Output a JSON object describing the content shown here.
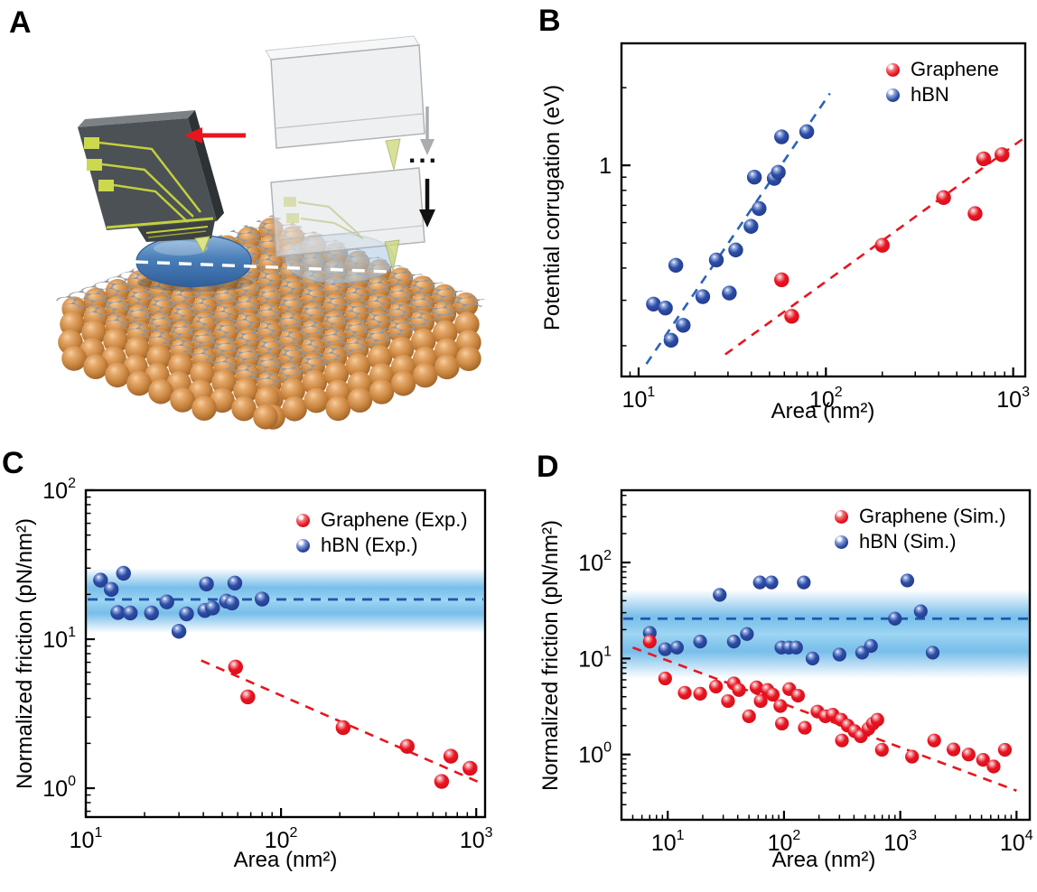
{
  "figure": {
    "panels": [
      {
        "label": "A"
      },
      {
        "label": "B"
      },
      {
        "label": "C"
      },
      {
        "label": "D"
      }
    ]
  },
  "panel_a": {
    "ellipsis": "...",
    "elements": [
      "afm-cantilever-chip",
      "ghost-cantilever-upper",
      "ghost-cantilever-lower",
      "water-droplet",
      "ghost-water-droplet",
      "graphene-sheet",
      "copper-substrate",
      "red-arrow-left",
      "gray-arrow-down",
      "black-arrow-down",
      "sliding-path-dashed-line"
    ]
  },
  "colors": {
    "graphene_red": "#e8141f",
    "hbn_blue": "#2b4aa0",
    "band_blue": "#57aee5",
    "band_core_blue": "#9fd6f3",
    "band_line_blue": "#1f57ad",
    "trend_red": "#e8151f",
    "trend_blue": "#2c62b8",
    "axis_black": "#000000",
    "copper_orange": "#c9853f",
    "graphene_gray": "#959ba1"
  },
  "chart_data": [
    {
      "panel": "B",
      "type": "scatter",
      "xlabel": "Area (nm²)",
      "ylabel": "Potential corrugation (eV)",
      "xscale": "log",
      "yscale": "log",
      "xlim": [
        8.1,
        1160
      ],
      "ylim": [
        0.152,
        2.97
      ],
      "grid": false,
      "legend_position": "top-right",
      "xticks": [
        {
          "value": 10,
          "label": "10",
          "exp": "1"
        },
        {
          "value": 100,
          "label": "10",
          "exp": "2"
        },
        {
          "value": 1000,
          "label": "10",
          "exp": "3"
        }
      ],
      "yticks": [
        {
          "value": 1,
          "label": "1",
          "exp": ""
        }
      ],
      "legend": [
        {
          "label": "Graphene",
          "color": "graphene"
        },
        {
          "label": "hBN",
          "color": "hbn"
        }
      ],
      "series": [
        {
          "name": "hBN",
          "color": "hbn",
          "points": [
            [
              12,
              0.29
            ],
            [
              13.9,
              0.28
            ],
            [
              14.9,
              0.21
            ],
            [
              15.8,
              0.41
            ],
            [
              17.3,
              0.24
            ],
            [
              22,
              0.31
            ],
            [
              26,
              0.43
            ],
            [
              30.5,
              0.32
            ],
            [
              33,
              0.47
            ],
            [
              39.8,
              0.58
            ],
            [
              41.5,
              0.9
            ],
            [
              44,
              0.68
            ],
            [
              53,
              0.89
            ],
            [
              55.7,
              0.94
            ],
            [
              58,
              1.29
            ],
            [
              79,
              1.35
            ]
          ]
        },
        {
          "name": "Graphene",
          "color": "graphene",
          "points": [
            [
              58,
              0.36
            ],
            [
              65.7,
              0.26
            ],
            [
              200,
              0.49
            ],
            [
              425,
              0.75
            ],
            [
              626,
              0.65
            ],
            [
              695,
              1.06
            ],
            [
              871,
              1.1
            ]
          ]
        }
      ],
      "trends": [
        {
          "color": "hbn",
          "from": [
            11,
            0.17
          ],
          "to": [
            105,
            1.9
          ]
        },
        {
          "color": "graphene",
          "from": [
            29,
            0.185
          ],
          "to": [
            1150,
            1.28
          ]
        }
      ]
    },
    {
      "panel": "C",
      "type": "scatter",
      "xlabel": "Area (nm²)",
      "ylabel": "Normalized friction (pN/nm²)",
      "xscale": "log",
      "yscale": "log",
      "xlim": [
        10,
        1110
      ],
      "ylim": [
        0.64,
        100
      ],
      "grid": false,
      "legend_position": "top-right",
      "xticks": [
        {
          "value": 10,
          "label": "10",
          "exp": "1"
        },
        {
          "value": 100,
          "label": "10",
          "exp": "2"
        },
        {
          "value": 1000,
          "label": "10",
          "exp": "3"
        }
      ],
      "yticks": [
        {
          "value": 1,
          "label": "10",
          "exp": "0"
        },
        {
          "value": 10,
          "label": "10",
          "exp": "1"
        },
        {
          "value": 100,
          "label": "10",
          "exp": "2"
        }
      ],
      "legend": [
        {
          "label": "Graphene (Exp.)",
          "color": "graphene"
        },
        {
          "label": "hBN (Exp.)",
          "color": "hbn"
        }
      ],
      "band": {
        "from": 11,
        "to": 30,
        "center": 18.5
      },
      "band_line": 18.5,
      "series": [
        {
          "name": "hBN (Exp.)",
          "color": "hbn",
          "points": [
            [
              11.9,
              24.9
            ],
            [
              13.5,
              21.6
            ],
            [
              14.6,
              15.1
            ],
            [
              15.6,
              27.7
            ],
            [
              16.9,
              15.0
            ],
            [
              21.7,
              15.0
            ],
            [
              26,
              17.8
            ],
            [
              30,
              11.3
            ],
            [
              32.8,
              14.8
            ],
            [
              40.7,
              15.6
            ],
            [
              41.5,
              23.5
            ],
            [
              44.6,
              16.2
            ],
            [
              52.5,
              18.0
            ],
            [
              56,
              17.5
            ],
            [
              58,
              23.8
            ],
            [
              80,
              18.6
            ]
          ]
        },
        {
          "name": "Graphene (Exp.)",
          "color": "graphene",
          "points": [
            [
              58.5,
              6.5
            ],
            [
              67.6,
              4.1
            ],
            [
              208,
              2.55
            ],
            [
              443,
              1.91
            ],
            [
              665,
              1.11
            ],
            [
              741,
              1.64
            ],
            [
              929,
              1.36
            ]
          ]
        }
      ],
      "trends": [
        {
          "color": "graphene",
          "from": [
            39,
            7.2
          ],
          "to": [
            1060,
            1.08
          ]
        }
      ]
    },
    {
      "panel": "D",
      "type": "scatter",
      "xlabel": "Area (nm²)",
      "ylabel": "Normalized friction (pN/nm²)",
      "xscale": "log",
      "yscale": "log",
      "xlim": [
        4.0,
        13000
      ],
      "ylim": [
        0.209,
        566
      ],
      "grid": false,
      "legend_position": "top-right",
      "xticks": [
        {
          "value": 10,
          "label": "10",
          "exp": "1"
        },
        {
          "value": 100,
          "label": "10",
          "exp": "2"
        },
        {
          "value": 1000,
          "label": "10",
          "exp": "3"
        },
        {
          "value": 10000,
          "label": "10",
          "exp": "4"
        }
      ],
      "yticks": [
        {
          "value": 1,
          "label": "10",
          "exp": "0"
        },
        {
          "value": 10,
          "label": "10",
          "exp": "1"
        },
        {
          "value": 100,
          "label": "10",
          "exp": "2"
        }
      ],
      "legend": [
        {
          "label": "Graphene (Sim.)",
          "color": "graphene"
        },
        {
          "label": "hBN (Sim.)",
          "color": "hbn"
        }
      ],
      "band": {
        "from": 6.2,
        "to": 52,
        "center": 26
      },
      "band_line": 26,
      "series": [
        {
          "name": "hBN (Sim.)",
          "color": "hbn",
          "points": [
            [
              7,
              18.5
            ],
            [
              9.5,
              12.5
            ],
            [
              12,
              13
            ],
            [
              19,
              15
            ],
            [
              28,
              46
            ],
            [
              37,
              15
            ],
            [
              48,
              18
            ],
            [
              62,
              62
            ],
            [
              78,
              62
            ],
            [
              95,
              13
            ],
            [
              110,
              13
            ],
            [
              127,
              13
            ],
            [
              148,
              62
            ],
            [
              176,
              10
            ],
            [
              300,
              11
            ],
            [
              470,
              11.5
            ],
            [
              560,
              13.5
            ],
            [
              900,
              26
            ],
            [
              1150,
              65
            ],
            [
              1500,
              31
            ],
            [
              1900,
              11.5
            ]
          ]
        },
        {
          "name": "Graphene (Sim.)",
          "color": "graphene",
          "points": [
            [
              7,
              15
            ],
            [
              9.5,
              6.2
            ],
            [
              14,
              4.4
            ],
            [
              19,
              4.3
            ],
            [
              26,
              5.1
            ],
            [
              33,
              3.6
            ],
            [
              37,
              5.5
            ],
            [
              41,
              4.7
            ],
            [
              50,
              2.5
            ],
            [
              58,
              5.0
            ],
            [
              63,
              3.6
            ],
            [
              72,
              4.7
            ],
            [
              80,
              4.2
            ],
            [
              93,
              3.2
            ],
            [
              96,
              2.1
            ],
            [
              111,
              4.8
            ],
            [
              132,
              4.1
            ],
            [
              151,
              1.9
            ],
            [
              194,
              2.8
            ],
            [
              227,
              2.5
            ],
            [
              262,
              2.6
            ],
            [
              310,
              2.3
            ],
            [
              315,
              1.4
            ],
            [
              353,
              2.0
            ],
            [
              405,
              1.75
            ],
            [
              457,
              1.55
            ],
            [
              531,
              1.85
            ],
            [
              581,
              2.1
            ],
            [
              635,
              2.3
            ],
            [
              695,
              1.12
            ],
            [
              1263,
              0.95
            ],
            [
              1958,
              1.4
            ],
            [
              2870,
              1.13
            ],
            [
              3873,
              1.0
            ],
            [
              5152,
              0.88
            ],
            [
              6353,
              0.75
            ],
            [
              7943,
              1.12
            ]
          ]
        }
      ],
      "trends": [
        {
          "color": "graphene",
          "from": [
            5,
            13
          ],
          "to": [
            10000,
            0.42
          ]
        }
      ]
    }
  ]
}
